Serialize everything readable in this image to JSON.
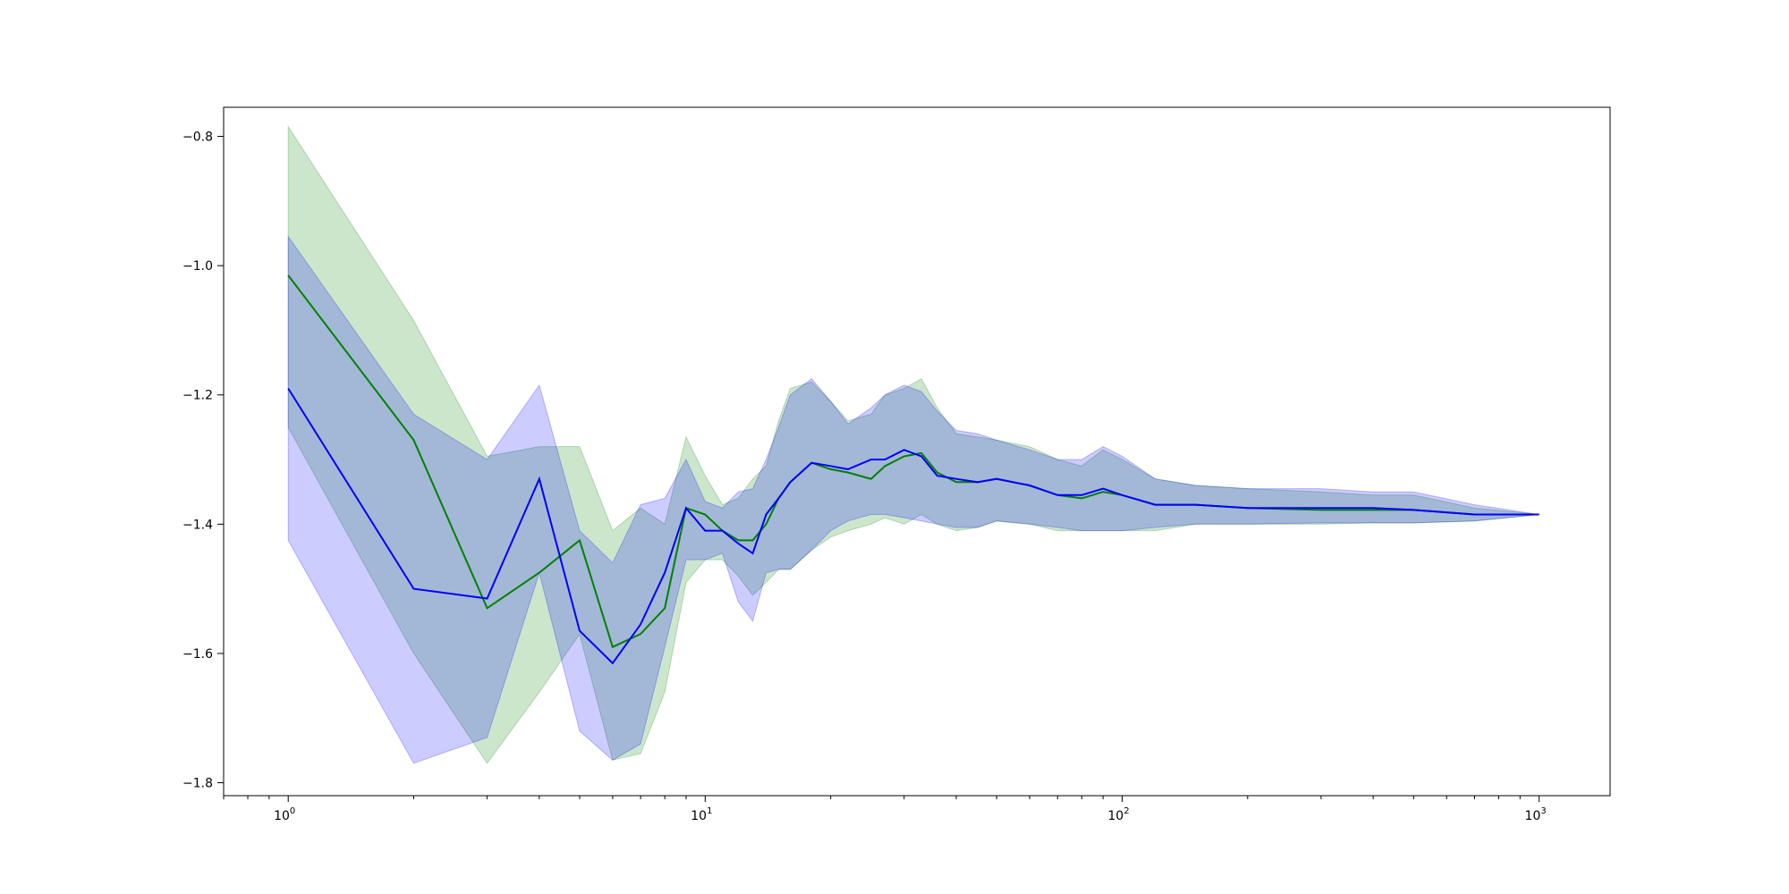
{
  "chart_data": {
    "type": "line",
    "title": "",
    "xlabel": "",
    "ylabel": "",
    "xscale": "log",
    "xlim": [
      0.7,
      1480
    ],
    "ylim": [
      -1.82,
      -0.755
    ],
    "grid": false,
    "x_major_ticks": [
      {
        "value": 1,
        "base": "10",
        "exp": "0"
      },
      {
        "value": 10,
        "base": "10",
        "exp": "1"
      },
      {
        "value": 100,
        "base": "10",
        "exp": "2"
      },
      {
        "value": 1000,
        "base": "10",
        "exp": "3"
      }
    ],
    "y_ticks": [
      {
        "value": -0.8,
        "label": "−0.8"
      },
      {
        "value": -1.0,
        "label": "−1.0"
      },
      {
        "value": -1.2,
        "label": "−1.2"
      },
      {
        "value": -1.4,
        "label": "−1.4"
      },
      {
        "value": -1.6,
        "label": "−1.6"
      },
      {
        "value": -1.8,
        "label": "−1.8"
      }
    ],
    "series": [
      {
        "color": "#008000",
        "band_color": "#008000",
        "band_opacity": 0.2,
        "points": [
          [
            1,
            -1.015,
            -0.785,
            -1.25
          ],
          [
            2,
            -1.27,
            -1.085,
            -1.6
          ],
          [
            3,
            -1.53,
            -1.295,
            -1.77
          ],
          [
            4,
            -1.475,
            -1.28,
            -1.66
          ],
          [
            5,
            -1.425,
            -1.28,
            -1.57
          ],
          [
            6,
            -1.59,
            -1.41,
            -1.765
          ],
          [
            7,
            -1.57,
            -1.375,
            -1.755
          ],
          [
            8,
            -1.53,
            -1.4,
            -1.66
          ],
          [
            9,
            -1.375,
            -1.265,
            -1.49
          ],
          [
            10,
            -1.385,
            -1.325,
            -1.455
          ],
          [
            11,
            -1.41,
            -1.37,
            -1.455
          ],
          [
            12,
            -1.425,
            -1.36,
            -1.48
          ],
          [
            13,
            -1.425,
            -1.33,
            -1.51
          ],
          [
            14,
            -1.4,
            -1.31,
            -1.49
          ],
          [
            15,
            -1.36,
            -1.24,
            -1.47
          ],
          [
            16,
            -1.335,
            -1.19,
            -1.47
          ],
          [
            18,
            -1.305,
            -1.18,
            -1.44
          ],
          [
            20,
            -1.315,
            -1.21,
            -1.42
          ],
          [
            22,
            -1.32,
            -1.24,
            -1.41
          ],
          [
            25,
            -1.33,
            -1.23,
            -1.4
          ],
          [
            27,
            -1.31,
            -1.2,
            -1.39
          ],
          [
            30,
            -1.295,
            -1.19,
            -1.4
          ],
          [
            33,
            -1.29,
            -1.175,
            -1.385
          ],
          [
            36,
            -1.32,
            -1.22,
            -1.4
          ],
          [
            40,
            -1.335,
            -1.26,
            -1.41
          ],
          [
            45,
            -1.335,
            -1.265,
            -1.405
          ],
          [
            50,
            -1.33,
            -1.27,
            -1.395
          ],
          [
            60,
            -1.34,
            -1.28,
            -1.4
          ],
          [
            70,
            -1.355,
            -1.3,
            -1.41
          ],
          [
            80,
            -1.36,
            -1.31,
            -1.41
          ],
          [
            90,
            -1.35,
            -1.285,
            -1.41
          ],
          [
            100,
            -1.355,
            -1.3,
            -1.41
          ],
          [
            120,
            -1.37,
            -1.33,
            -1.41
          ],
          [
            150,
            -1.37,
            -1.34,
            -1.4
          ],
          [
            200,
            -1.375,
            -1.345,
            -1.4
          ],
          [
            300,
            -1.378,
            -1.35,
            -1.4
          ],
          [
            400,
            -1.378,
            -1.355,
            -1.398
          ],
          [
            500,
            -1.378,
            -1.355,
            -1.398
          ],
          [
            700,
            -1.385,
            -1.375,
            -1.395
          ],
          [
            1000,
            -1.385,
            -1.385,
            -1.385
          ]
        ]
      },
      {
        "color": "#0000ff",
        "band_color": "#0000ff",
        "band_opacity": 0.2,
        "points": [
          [
            1,
            -1.19,
            -0.955,
            -1.425
          ],
          [
            2,
            -1.5,
            -1.23,
            -1.77
          ],
          [
            3,
            -1.515,
            -1.3,
            -1.73
          ],
          [
            4,
            -1.33,
            -1.185,
            -1.475
          ],
          [
            5,
            -1.565,
            -1.41,
            -1.72
          ],
          [
            6,
            -1.615,
            -1.46,
            -1.765
          ],
          [
            7,
            -1.555,
            -1.37,
            -1.74
          ],
          [
            8,
            -1.475,
            -1.36,
            -1.59
          ],
          [
            9,
            -1.375,
            -1.3,
            -1.455
          ],
          [
            10,
            -1.41,
            -1.365,
            -1.455
          ],
          [
            11,
            -1.41,
            -1.375,
            -1.445
          ],
          [
            12,
            -1.43,
            -1.35,
            -1.52
          ],
          [
            13,
            -1.445,
            -1.345,
            -1.55
          ],
          [
            14,
            -1.385,
            -1.3,
            -1.475
          ],
          [
            15,
            -1.36,
            -1.25,
            -1.47
          ],
          [
            16,
            -1.335,
            -1.2,
            -1.47
          ],
          [
            18,
            -1.305,
            -1.175,
            -1.44
          ],
          [
            20,
            -1.31,
            -1.21,
            -1.41
          ],
          [
            22,
            -1.315,
            -1.245,
            -1.395
          ],
          [
            25,
            -1.3,
            -1.22,
            -1.385
          ],
          [
            27,
            -1.3,
            -1.2,
            -1.385
          ],
          [
            30,
            -1.285,
            -1.185,
            -1.39
          ],
          [
            33,
            -1.295,
            -1.195,
            -1.395
          ],
          [
            36,
            -1.325,
            -1.225,
            -1.4
          ],
          [
            40,
            -1.33,
            -1.255,
            -1.405
          ],
          [
            45,
            -1.335,
            -1.26,
            -1.405
          ],
          [
            50,
            -1.33,
            -1.27,
            -1.395
          ],
          [
            60,
            -1.34,
            -1.285,
            -1.4
          ],
          [
            70,
            -1.355,
            -1.3,
            -1.405
          ],
          [
            80,
            -1.355,
            -1.3,
            -1.41
          ],
          [
            90,
            -1.345,
            -1.28,
            -1.41
          ],
          [
            100,
            -1.355,
            -1.295,
            -1.41
          ],
          [
            120,
            -1.37,
            -1.33,
            -1.405
          ],
          [
            150,
            -1.37,
            -1.34,
            -1.4
          ],
          [
            200,
            -1.375,
            -1.345,
            -1.4
          ],
          [
            300,
            -1.375,
            -1.345,
            -1.398
          ],
          [
            400,
            -1.375,
            -1.35,
            -1.398
          ],
          [
            500,
            -1.378,
            -1.35,
            -1.398
          ],
          [
            700,
            -1.385,
            -1.37,
            -1.395
          ],
          [
            1000,
            -1.385,
            -1.385,
            -1.385
          ]
        ]
      }
    ]
  }
}
